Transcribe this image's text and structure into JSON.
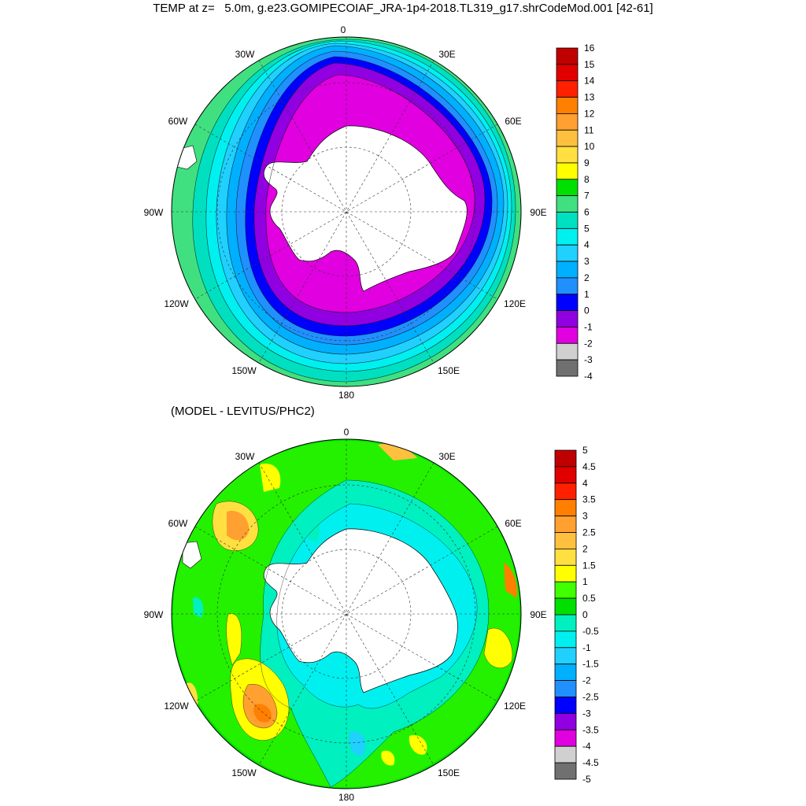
{
  "title": "TEMP at z=   5.0m, g.e23.GOMIPECOIAF_JRA-1p4-2018.TL319_g17.shrCodeMod.001 [42-61]",
  "subtitle": "(MODEL - LEVITUS/PHC2)",
  "map_labels": {
    "lon_0": "0",
    "lon_30e": "30E",
    "lon_60e": "60E",
    "lon_90e": "90E",
    "lon_120e": "120E",
    "lon_150e": "150E",
    "lon_180": "180",
    "lon_150w": "150W",
    "lon_120w": "120W",
    "lon_90w": "90W",
    "lon_60w": "60W",
    "lon_30w": "30W"
  },
  "colorbar_top": {
    "labels": [
      "16",
      "15",
      "14",
      "13",
      "12",
      "11",
      "10",
      "9",
      "8",
      "7",
      "6",
      "5",
      "4",
      "3",
      "2",
      "1",
      "0",
      "-1",
      "-2",
      "-3",
      "-4"
    ],
    "colors": [
      "#c00000",
      "#e00000",
      "#ff2000",
      "#ff8000",
      "#ffa030",
      "#ffc040",
      "#ffe040",
      "#ffff00",
      "#00e000",
      "#40e080",
      "#00e0c0",
      "#00f0f0",
      "#20d0ff",
      "#00b0ff",
      "#2090ff",
      "#0000ff",
      "#9000e0",
      "#e000e0",
      "#d0d0d0",
      "#707070"
    ]
  },
  "colorbar_bottom": {
    "labels": [
      "5",
      "4.5",
      "4",
      "3.5",
      "3",
      "2.5",
      "2",
      "1.5",
      "1",
      "0.5",
      "0",
      "-0.5",
      "-1",
      "-1.5",
      "-2",
      "-2.5",
      "-3",
      "-3.5",
      "-4",
      "-4.5",
      "-5"
    ],
    "colors": [
      "#c00000",
      "#e00000",
      "#ff2000",
      "#ff8000",
      "#ffa030",
      "#ffc040",
      "#ffe040",
      "#ffff00",
      "#40ff00",
      "#00e000",
      "#00f0c0",
      "#00f0f0",
      "#20d0ff",
      "#00b0ff",
      "#2090ff",
      "#0000ff",
      "#9000e0",
      "#e000e0",
      "#d0d0d0",
      "#707070"
    ]
  },
  "colors": {
    "land": "#ffffff",
    "outline": "#000000"
  }
}
